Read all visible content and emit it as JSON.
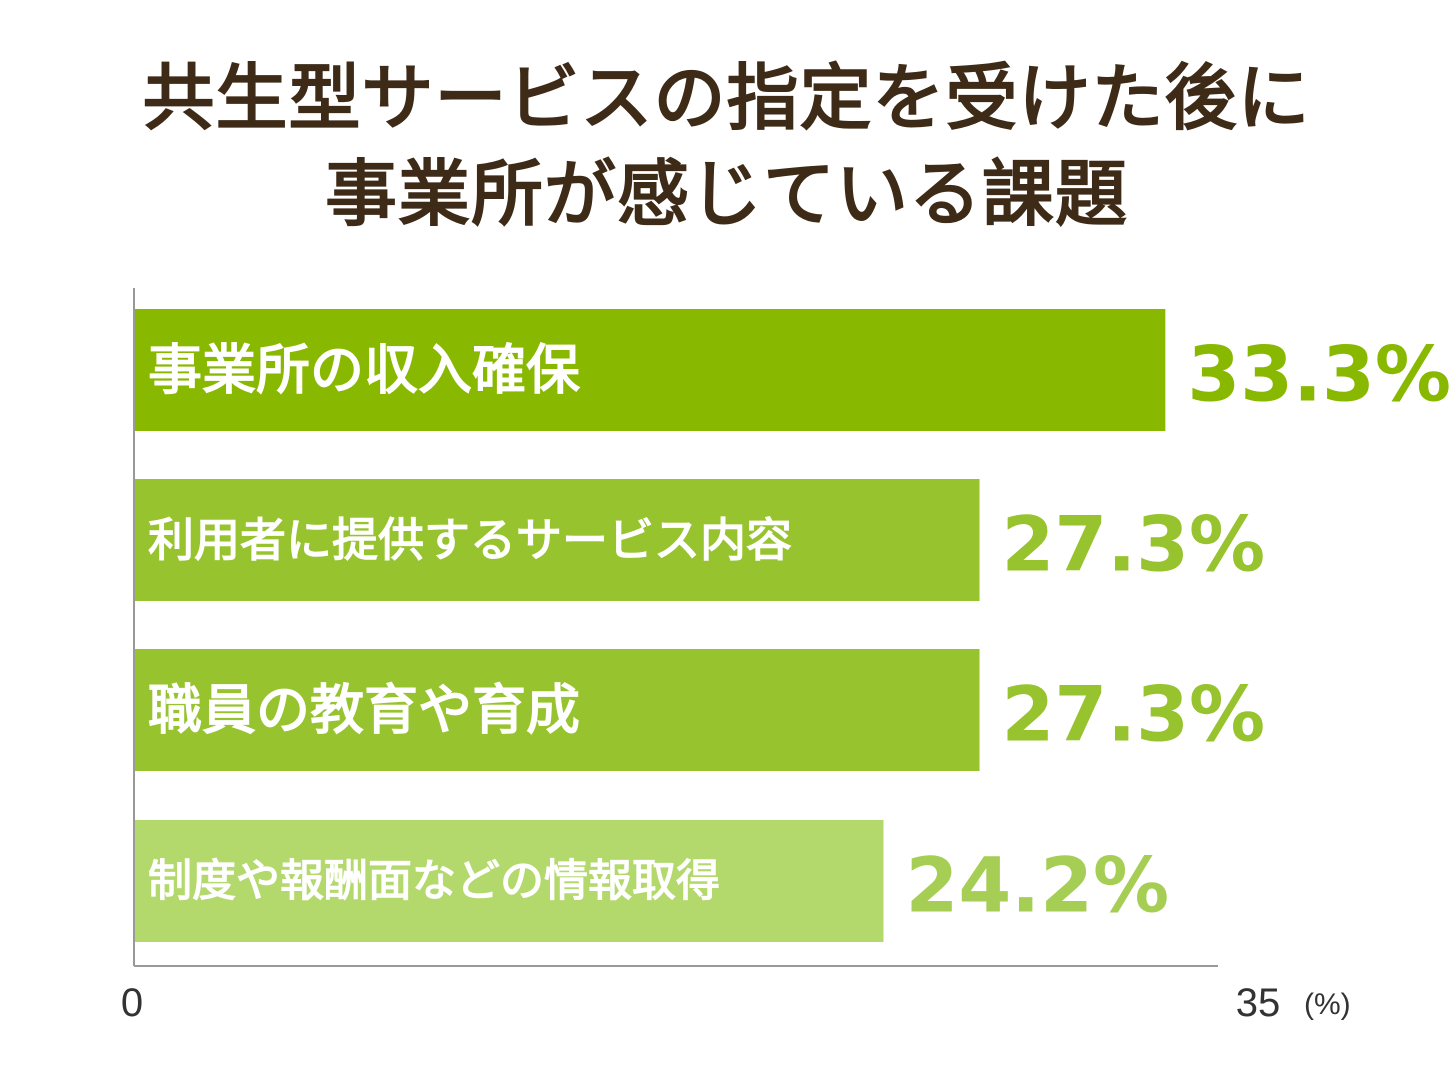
{
  "chart_data": {
    "type": "bar",
    "orientation": "horizontal",
    "title_lines": [
      "共生型サービスの指定を受けた後に",
      "事業所が感じている課題"
    ],
    "categories": [
      "事業所の収入確保",
      "利用者に提供するサービス内容",
      "職員の教育や育成",
      "制度や報酬面などの情報取得"
    ],
    "values": [
      33.3,
      27.3,
      27.3,
      24.2
    ],
    "value_labels": [
      "33.3%",
      "27.3%",
      "27.3%",
      "24.2%"
    ],
    "xlim": [
      0,
      35
    ],
    "x_tick_labels": [
      "0",
      "35"
    ],
    "x_unit": "(%)",
    "grid": false,
    "bar_colors": [
      "#88b800",
      "#96c32e",
      "#96c32e",
      "#b3d86c"
    ],
    "value_colors": [
      "#88b800",
      "#96c32e",
      "#96c32e",
      "#a6ce55"
    ]
  }
}
